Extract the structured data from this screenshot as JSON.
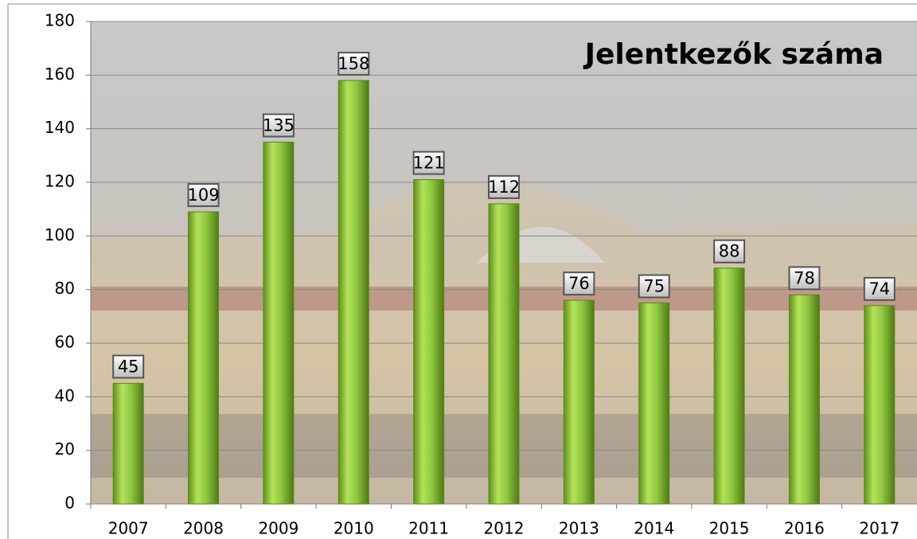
{
  "chart_data": {
    "type": "bar",
    "title": "Jelentkezők száma",
    "categories": [
      "2007",
      "2008",
      "2009",
      "2010",
      "2011",
      "2012",
      "2013",
      "2014",
      "2015",
      "2016",
      "2017"
    ],
    "values": [
      45,
      109,
      135,
      158,
      121,
      112,
      76,
      75,
      88,
      78,
      74
    ],
    "color": "#8dc63f",
    "ylim": [
      0,
      180
    ],
    "yticks": [
      0,
      20,
      40,
      60,
      80,
      100,
      120,
      140,
      160,
      180
    ],
    "grid": true
  }
}
